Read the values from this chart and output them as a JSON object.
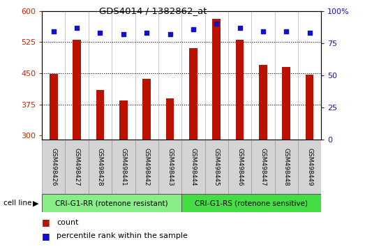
{
  "title": "GDS4014 / 1382862_at",
  "samples": [
    "GSM498426",
    "GSM498427",
    "GSM498428",
    "GSM498441",
    "GSM498442",
    "GSM498443",
    "GSM498444",
    "GSM498445",
    "GSM498446",
    "GSM498447",
    "GSM498448",
    "GSM498449"
  ],
  "counts": [
    449,
    530,
    410,
    385,
    437,
    390,
    510,
    582,
    530,
    470,
    465,
    447
  ],
  "percentile_ranks": [
    84,
    87,
    83,
    82,
    83,
    82,
    86,
    90,
    87,
    84,
    84,
    83
  ],
  "bar_bottom": 290,
  "ylim_left": [
    290,
    600
  ],
  "ylim_right": [
    0,
    100
  ],
  "yticks_left": [
    300,
    375,
    450,
    525,
    600
  ],
  "yticks_right": [
    0,
    25,
    50,
    75,
    100
  ],
  "ytick_right_labels": [
    "0",
    "25",
    "50",
    "75",
    "100%"
  ],
  "bar_color": "#bb1100",
  "dot_color": "#1111cc",
  "group1_label": "CRI-G1-RR (rotenone resistant)",
  "group2_label": "CRI-G1-RS (rotenone sensitive)",
  "group1_color": "#88ee88",
  "group2_color": "#44dd44",
  "cell_line_label": "cell line",
  "legend_count": "count",
  "legend_percentile": "percentile rank within the sample",
  "plot_bg": "#ffffff",
  "label_bg": "#cccccc",
  "bar_width": 0.35
}
